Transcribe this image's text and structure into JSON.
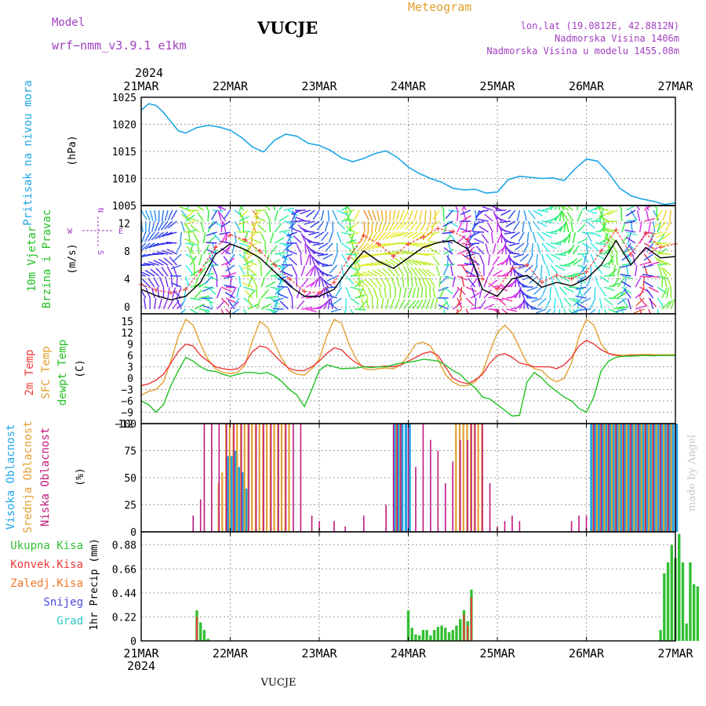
{
  "header": {
    "model_label": "Model",
    "model_value": "wrf−nmm_v3.9.1  e1km",
    "station": "VUCJE",
    "meteogram": "Meteogram",
    "lonlat": "lon,lat (19.0812E, 42.8812N)",
    "altitude": "Nadmorska Visina 1406m",
    "altitude_model": "Nadmorska Visina u modelu 1455.08m"
  },
  "footer": {
    "station": "VUCJE",
    "credit": "made by Angel"
  },
  "time_axis": {
    "year": "2024",
    "ticks": [
      "21MAR",
      "22MAR",
      "23MAR",
      "24MAR",
      "25MAR",
      "26MAR",
      "27MAR"
    ],
    "hours": 144
  },
  "colors": {
    "pressure": "#1ea6e6",
    "temp2m": "#ee3a3a",
    "sfc": "#e2a030",
    "dew": "#22c022",
    "cloud_high": "#1ea6e6",
    "cloud_mid": "#e2a030",
    "cloud_low": "#c0187e",
    "precip_total": "#33c033",
    "precip_conv": "#ee3a3a",
    "precip_frz": "#f07828",
    "precip_snow": "#4a4ae0",
    "precip_grad": "#30c8c8",
    "wind_speed": "#000000",
    "wind_gust": "#ee3a3a"
  },
  "chart_data": [
    {
      "type": "line",
      "name": "pressure",
      "ylabel": "Pritisak na nivou mora",
      "unit": "(hPa)",
      "ylim": [
        1005,
        1025
      ],
      "yticks": [
        "1025",
        "1020",
        "1015",
        "1010",
        "1005"
      ],
      "grid": true,
      "x_hours": [
        0,
        2,
        4,
        6,
        8,
        10,
        12,
        15,
        18,
        21,
        24,
        27,
        30,
        33,
        36,
        39,
        42,
        45,
        48,
        51,
        54,
        57,
        60,
        63,
        66,
        69,
        72,
        75,
        78,
        81,
        84,
        87,
        90,
        93,
        96,
        99,
        102,
        105,
        108,
        111,
        114,
        117,
        120,
        123,
        126,
        129,
        132,
        135,
        138,
        141,
        144
      ],
      "values": [
        1022.6,
        1023.8,
        1023.5,
        1022.2,
        1020.5,
        1018.8,
        1018.4,
        1019.4,
        1019.8,
        1019.5,
        1018.9,
        1017.6,
        1015.8,
        1014.9,
        1017.1,
        1018.2,
        1017.8,
        1016.5,
        1016.1,
        1015.2,
        1013.8,
        1013.1,
        1013.7,
        1014.6,
        1015.1,
        1013.9,
        1012.1,
        1010.9,
        1010.0,
        1009.3,
        1008.2,
        1007.9,
        1008.0,
        1007.3,
        1007.5,
        1009.8,
        1010.4,
        1010.2,
        1010.0,
        1010.1,
        1009.6,
        1011.8,
        1013.6,
        1013.2,
        1011.0,
        1008.2,
        1006.8,
        1006.2,
        1005.8,
        1005.2,
        1005.5
      ]
    },
    {
      "type": "line",
      "name": "wind",
      "ylabel": "10m Vjetar",
      "ylabel2": "Brzina i Pravac",
      "unit": "(m/s)",
      "ylim": [
        -1,
        14.5
      ],
      "yticks": [
        "12",
        "8",
        "4",
        "0"
      ],
      "compass": {
        "n": "N",
        "s": "S",
        "w": "W",
        "e": "E"
      },
      "grid": true,
      "x_hours": [
        0,
        4,
        8,
        12,
        16,
        20,
        24,
        28,
        32,
        36,
        40,
        44,
        48,
        52,
        56,
        60,
        64,
        68,
        72,
        76,
        80,
        84,
        88,
        92,
        96,
        100,
        104,
        108,
        112,
        116,
        120,
        124,
        128,
        132,
        136,
        140,
        144
      ],
      "speed": [
        2.5,
        1.6,
        1.0,
        1.5,
        3.5,
        7.5,
        9.0,
        8.2,
        7.0,
        5.0,
        3.0,
        1.5,
        1.5,
        2.5,
        5.5,
        8.0,
        6.5,
        5.5,
        7.0,
        8.5,
        9.2,
        9.5,
        8.3,
        2.5,
        1.5,
        4.0,
        4.5,
        2.8,
        3.5,
        3.0,
        4.0,
        6.0,
        9.5,
        6.0,
        8.5,
        7.0,
        7.2
      ],
      "gust": [
        3.2,
        2.4,
        2.0,
        2.5,
        5.2,
        8.5,
        10.3,
        9.6,
        8.0,
        6.0,
        4.0,
        2.2,
        2.0,
        3.5,
        7.0,
        10.2,
        9.0,
        7.2,
        9.0,
        10.0,
        11.2,
        10.8,
        9.6,
        4.0,
        2.5,
        5.5,
        6.0,
        3.5,
        4.5,
        4.0,
        5.0,
        8.0,
        11.0,
        7.5,
        10.5,
        8.5,
        9.0
      ]
    },
    {
      "type": "line",
      "name": "temperature",
      "ylabel": "2m Temp",
      "ylabel2": "SFC Temp",
      "ylabel3": "dewpt Temp",
      "unit": "(C)",
      "ylim": [
        -12,
        17
      ],
      "yticks": [
        "15",
        "12",
        "9",
        "6",
        "3",
        "0",
        "−3",
        "−6",
        "−9",
        "−12"
      ],
      "grid": true,
      "x_hours": [
        0,
        2,
        4,
        6,
        8,
        10,
        12,
        14,
        16,
        18,
        20,
        22,
        24,
        26,
        28,
        30,
        32,
        34,
        36,
        38,
        40,
        42,
        44,
        46,
        48,
        50,
        52,
        54,
        56,
        58,
        60,
        62,
        64,
        66,
        68,
        70,
        72,
        74,
        76,
        78,
        80,
        82,
        84,
        86,
        88,
        90,
        92,
        94,
        96,
        98,
        100,
        102,
        104,
        106,
        108,
        110,
        112,
        114,
        116,
        118,
        120,
        122,
        124,
        126,
        128,
        130,
        132,
        134,
        136,
        138,
        140,
        142,
        144
      ],
      "t2m": [
        -2,
        -1.5,
        -0.5,
        1,
        4,
        7,
        9,
        8.5,
        6,
        4.5,
        3,
        2.5,
        2.2,
        2.5,
        4,
        7,
        8.5,
        8,
        6,
        4,
        2.5,
        2,
        2,
        3,
        4.5,
        6.5,
        8,
        7.5,
        5.5,
        4,
        3,
        3,
        3,
        3.2,
        3,
        3.5,
        4.5,
        5.5,
        6.5,
        7,
        6,
        3,
        0,
        -1,
        -1.5,
        -0.5,
        1,
        4,
        6,
        6.5,
        5.5,
        4,
        3.5,
        3,
        3,
        3,
        2.5,
        3.5,
        5.5,
        8.5,
        10,
        9,
        7.5,
        6.5,
        6,
        5.8,
        6,
        6,
        6,
        6,
        6,
        6,
        6
      ],
      "sfc": [
        -4.5,
        -3.5,
        -3,
        -1,
        4.5,
        11,
        15.5,
        14,
        9,
        5,
        2.5,
        1.5,
        1.2,
        1.5,
        3.5,
        10,
        15,
        13.5,
        9,
        5,
        2,
        1,
        0.8,
        2.5,
        5,
        11,
        15.5,
        14.5,
        9,
        5,
        2.5,
        2.2,
        2.5,
        2.7,
        2.5,
        3.5,
        6,
        9,
        9.5,
        8.5,
        5,
        1,
        -1,
        -2,
        -2,
        -1,
        1.5,
        7,
        12,
        14,
        12,
        8,
        4,
        2.5,
        2,
        0,
        -1,
        0,
        4,
        11,
        15.5,
        14,
        9,
        6.5,
        6.2,
        6,
        6.2,
        6.2,
        6.3,
        6.2,
        6.2,
        6.2,
        6.2
      ],
      "dew": [
        -6,
        -7,
        -9,
        -7,
        -2,
        2,
        5.5,
        4.5,
        3,
        2,
        1.8,
        1,
        0.5,
        1,
        1.5,
        1.5,
        1.2,
        1.5,
        0.5,
        -1,
        -3,
        -4.5,
        -7.5,
        -3,
        2,
        3.5,
        3,
        2.5,
        2.6,
        2.7,
        3,
        2.8,
        3,
        3,
        3.5,
        4,
        4.2,
        4.5,
        5,
        4.8,
        4.5,
        3.5,
        2,
        1,
        -1,
        -2.5,
        -5,
        -5.5,
        -7,
        -8.5,
        -10,
        -9.8,
        -1,
        1.5,
        0,
        -2,
        -3.5,
        -5,
        -6,
        -8,
        -9,
        -5,
        2,
        4.5,
        5.5,
        5.8,
        5.8,
        5.9,
        6,
        5.9,
        6,
        6,
        6
      ]
    },
    {
      "type": "bar",
      "name": "clouds",
      "ylabel": "Visoka Oblacnost",
      "ylabel2": "Srednja Oblacnost",
      "ylabel3": "Niska Oblacnost",
      "unit": "(%)",
      "ylim": [
        0,
        100
      ],
      "yticks": [
        "100",
        "75",
        "50",
        "25",
        "0"
      ],
      "grid": true,
      "series": [
        {
          "name": "Visoka Oblacnost",
          "hours": [
            23,
            24,
            25,
            26,
            27,
            28,
            68,
            69,
            70,
            71,
            72,
            121,
            122,
            123,
            124,
            125,
            126,
            127,
            128,
            129,
            130,
            131,
            132,
            133,
            134,
            135,
            136,
            137,
            138,
            139,
            140,
            141,
            142,
            143,
            144
          ],
          "values": [
            70,
            70,
            75,
            60,
            55,
            40,
            100,
            100,
            100,
            100,
            100,
            100,
            100,
            100,
            100,
            100,
            100,
            100,
            100,
            100,
            100,
            100,
            100,
            100,
            100,
            100,
            100,
            100,
            100,
            100,
            100,
            100,
            100,
            100,
            100
          ]
        },
        {
          "name": "Srednja Oblacnost",
          "hours": [
            21,
            22,
            23,
            24,
            25,
            26,
            27,
            28,
            29,
            30,
            31,
            32,
            33,
            34,
            35,
            36,
            37,
            38,
            39,
            40,
            69,
            70,
            85,
            86,
            87,
            88,
            89,
            90,
            91,
            92,
            122,
            123,
            124,
            125,
            126,
            127,
            128,
            129,
            130,
            131,
            132,
            133,
            134,
            135,
            136,
            137,
            138,
            139,
            140,
            141,
            142,
            143
          ],
          "values": [
            45,
            55,
            100,
            100,
            100,
            100,
            100,
            100,
            100,
            100,
            100,
            100,
            100,
            100,
            100,
            100,
            100,
            100,
            100,
            100,
            100,
            100,
            100,
            100,
            100,
            100,
            100,
            100,
            100,
            100,
            100,
            100,
            100,
            100,
            100,
            100,
            100,
            100,
            100,
            100,
            100,
            100,
            100,
            100,
            100,
            100,
            100,
            100,
            100,
            100,
            100,
            100
          ]
        },
        {
          "name": "Niska Oblacnost",
          "hours": [
            14,
            16,
            17,
            19,
            21,
            23,
            25,
            27,
            29,
            31,
            33,
            35,
            37,
            39,
            41,
            43,
            46,
            48,
            52,
            55,
            60,
            66,
            68,
            69,
            70,
            72,
            74,
            76,
            78,
            80,
            82,
            84,
            86,
            88,
            89,
            90,
            92,
            94,
            96,
            98,
            100,
            102,
            116,
            118,
            120,
            122,
            124,
            126,
            128,
            130,
            132,
            134,
            136,
            138,
            140,
            142,
            144
          ],
          "values": [
            15,
            30,
            100,
            100,
            100,
            100,
            100,
            100,
            100,
            100,
            100,
            100,
            100,
            100,
            100,
            100,
            15,
            10,
            10,
            5,
            15,
            25,
            100,
            100,
            100,
            100,
            60,
            100,
            85,
            75,
            45,
            65,
            85,
            85,
            100,
            100,
            100,
            45,
            5,
            10,
            15,
            10,
            10,
            15,
            15,
            100,
            100,
            100,
            100,
            100,
            100,
            100,
            100,
            100,
            100,
            100,
            100
          ]
        }
      ]
    },
    {
      "type": "bar",
      "name": "precipitation",
      "ylabel": "1hr Precip",
      "unit": "(mm)",
      "ylim": [
        0,
        1.0
      ],
      "yticks": [
        "0.88",
        "0.66",
        "0.44",
        "0.22",
        "0"
      ],
      "grid": true,
      "legend": [
        "Ukupna Kisa",
        "Konvek.Kisa",
        "Zaledj.Kisa",
        "Snijeg",
        "Grad"
      ],
      "series": [
        {
          "name": "Ukupna Kisa",
          "hours": [
            15,
            16,
            17,
            18,
            72,
            73,
            74,
            75,
            76,
            77,
            78,
            79,
            80,
            81,
            82,
            83,
            84,
            85,
            86,
            87,
            88,
            89,
            140,
            141,
            142,
            143,
            144,
            145,
            146,
            147,
            148,
            149,
            150
          ],
          "values": [
            0.28,
            0.17,
            0.1,
            0.02,
            0.28,
            0.12,
            0.06,
            0.05,
            0.1,
            0.1,
            0.05,
            0.1,
            0.13,
            0.14,
            0.12,
            0.08,
            0.1,
            0.14,
            0.2,
            0.28,
            0.18,
            0.47,
            0.1,
            0.62,
            0.72,
            0.88,
            0.76,
            0.98,
            0.72,
            0.16,
            0.72,
            0.52,
            0.5
          ]
        },
        {
          "name": "Konvek.Kisa",
          "hours": [
            15,
            87,
            88,
            89
          ],
          "values": [
            0.22,
            0.24,
            0.14,
            0.4
          ]
        }
      ]
    }
  ]
}
